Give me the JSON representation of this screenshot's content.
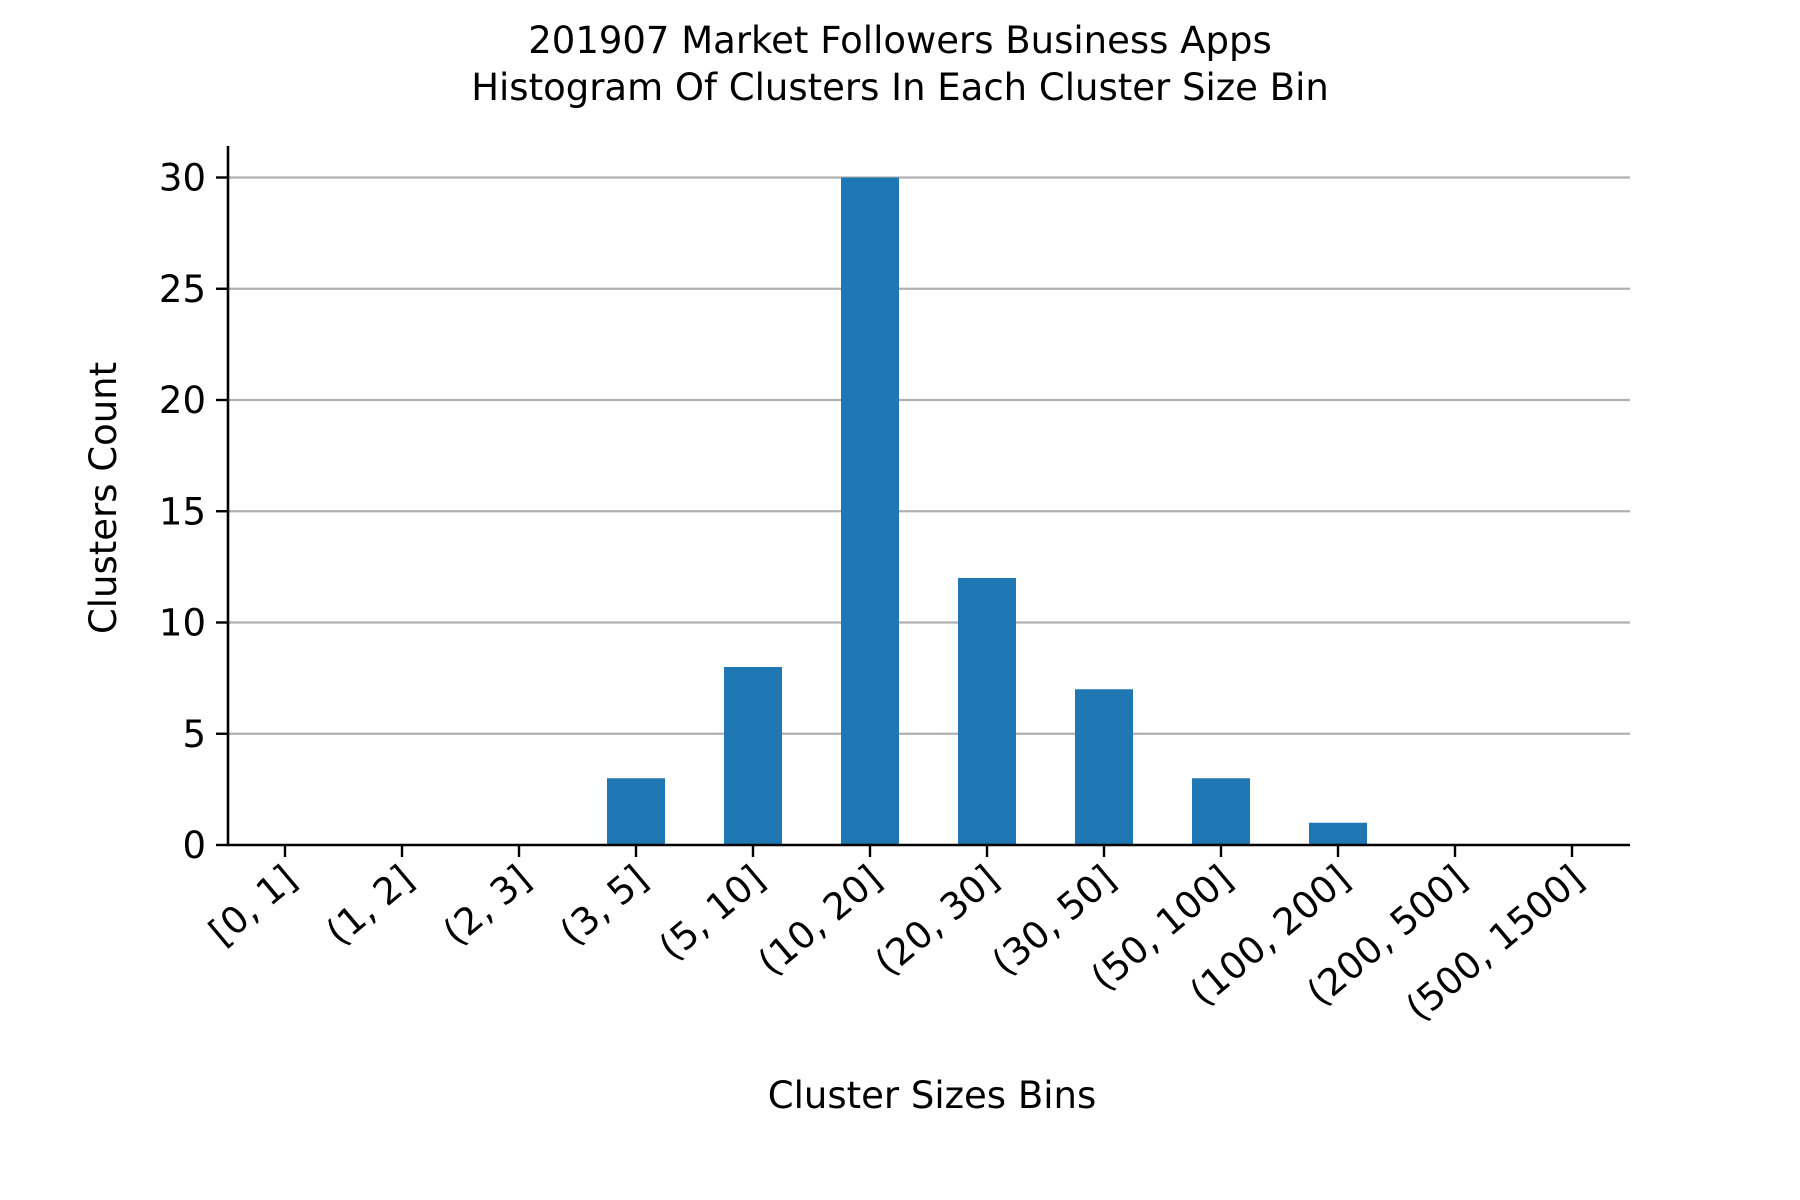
{
  "chart_data": {
    "type": "bar",
    "title_line1": "201907 Market Followers Business Apps",
    "title_line2": "Histogram Of Clusters In Each Cluster Size Bin",
    "xlabel": "Cluster Sizes Bins",
    "ylabel": "Clusters Count",
    "categories": [
      "[0, 1]",
      "(1, 2]",
      "(2, 3]",
      "(3, 5]",
      "(5, 10]",
      "(10, 20]",
      "(20, 30]",
      "(30, 50]",
      "(50, 100]",
      "(100, 200]",
      "(200, 500]",
      "(500, 1500]"
    ],
    "values": [
      0,
      0,
      0,
      3,
      8,
      30,
      12,
      7,
      3,
      1,
      0,
      0
    ],
    "yticks": [
      0,
      5,
      10,
      15,
      20,
      25,
      30
    ],
    "ylim": [
      0,
      31.5
    ],
    "grid": "horizontal",
    "bar_color": "#1f77b4",
    "grid_color": "#b0b0b0"
  }
}
